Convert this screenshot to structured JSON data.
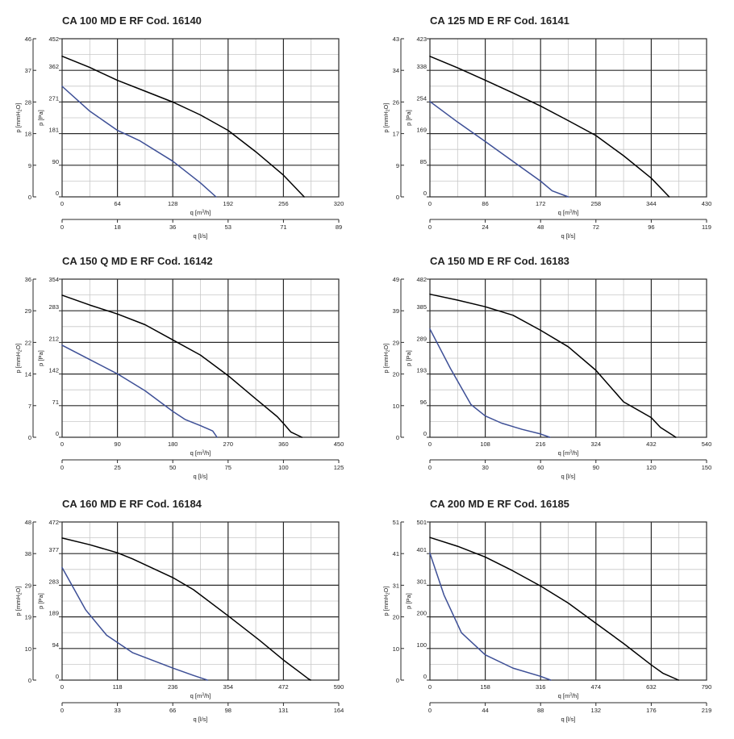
{
  "chart_data": [
    {
      "type": "line",
      "title": "CA 100 MD E RF Cod. 16140",
      "ylabel_pa": "p [Pa]",
      "ylabel_mmh2o": [
        "p [mmH",
        "2",
        "O]"
      ],
      "xlabel_m3h": [
        "q [m",
        "3",
        "/h]"
      ],
      "xlabel_ls": "q [l/s]",
      "ylim": [
        0,
        452
      ],
      "xlim": [
        0,
        320
      ],
      "pa_ticks": [
        "452",
        "362",
        "271",
        "181",
        "90",
        "0"
      ],
      "mm_ticks": [
        "46",
        "37",
        "28",
        "18",
        "9",
        "0"
      ],
      "m3h_ticks": [
        "0",
        "64",
        "128",
        "192",
        "256",
        "320"
      ],
      "ls_ticks": [
        "0",
        "18",
        "36",
        "53",
        "71",
        "89"
      ],
      "series": [
        {
          "color": "#000000",
          "x": [
            0,
            32,
            64,
            96,
            128,
            160,
            192,
            224,
            256,
            280
          ],
          "y": [
            402,
            370,
            333,
            302,
            271,
            234,
            190,
            129,
            62,
            0
          ]
        },
        {
          "color": "#3d4f96",
          "x": [
            0,
            32,
            64,
            90,
            128,
            160,
            178
          ],
          "y": [
            316,
            245,
            190,
            160,
            102,
            40,
            0
          ]
        }
      ]
    },
    {
      "type": "line",
      "title": "CA 125 MD E RF Cod. 16141",
      "ylabel_pa": "p [Pa]",
      "ylabel_mmh2o": [
        "p [mmH",
        "2",
        "O]"
      ],
      "xlabel_m3h": [
        "q [m",
        "3",
        "/h]"
      ],
      "xlabel_ls": "q [l/s]",
      "ylim": [
        0,
        423
      ],
      "xlim": [
        0,
        430
      ],
      "pa_ticks": [
        "423",
        "338",
        "254",
        "169",
        "85",
        "0"
      ],
      "mm_ticks": [
        "43",
        "34",
        "26",
        "17",
        "9",
        "0"
      ],
      "m3h_ticks": [
        "0",
        "86",
        "172",
        "258",
        "344",
        "430"
      ],
      "ls_ticks": [
        "0",
        "24",
        "48",
        "72",
        "96",
        "119"
      ],
      "series": [
        {
          "color": "#000000",
          "x": [
            0,
            43,
            86,
            129,
            172,
            215,
            258,
            301,
            344,
            372
          ],
          "y": [
            376,
            345,
            312,
            278,
            243,
            204,
            164,
            110,
            50,
            0
          ]
        },
        {
          "color": "#3d4f96",
          "x": [
            0,
            43,
            86,
            129,
            172,
            190,
            215
          ],
          "y": [
            255,
            200,
            148,
            95,
            42,
            16,
            0
          ]
        }
      ]
    },
    {
      "type": "line",
      "title": "CA 150 Q MD E RF Cod. 16142",
      "ylabel_pa": "p [Pa]",
      "ylabel_mmh2o": [
        "p [mmH",
        "2",
        "O]"
      ],
      "xlabel_m3h": [
        "q [m",
        "3",
        "/h]"
      ],
      "xlabel_ls": "q [l/s]",
      "ylim": [
        0,
        354
      ],
      "xlim": [
        0,
        450
      ],
      "pa_ticks": [
        "354",
        "283",
        "212",
        "142",
        "71",
        "0"
      ],
      "mm_ticks": [
        "36",
        "29",
        "22",
        "14",
        "7",
        "0"
      ],
      "m3h_ticks": [
        "0",
        "90",
        "180",
        "270",
        "360",
        "450"
      ],
      "ls_ticks": [
        "0",
        "25",
        "50",
        "75",
        "100",
        "125"
      ],
      "series": [
        {
          "color": "#000000",
          "x": [
            0,
            45,
            90,
            135,
            180,
            225,
            270,
            315,
            350,
            362,
            372,
            390
          ],
          "y": [
            318,
            296,
            276,
            252,
            218,
            184,
            138,
            86,
            46,
            28,
            12,
            0
          ]
        },
        {
          "color": "#3d4f96",
          "x": [
            0,
            45,
            90,
            135,
            180,
            200,
            225,
            245,
            252
          ],
          "y": [
            206,
            174,
            142,
            104,
            58,
            40,
            26,
            14,
            0
          ]
        }
      ]
    },
    {
      "type": "line",
      "title": "CA 150 MD E RF Cod. 16183",
      "ylabel_pa": "p [Pa]",
      "ylabel_mmh2o": [
        "p [mmH",
        "2",
        "O]"
      ],
      "xlabel_m3h": [
        "q [m",
        "3",
        "/h]"
      ],
      "xlabel_ls": "q [l/s]",
      "ylim": [
        0,
        482
      ],
      "xlim": [
        0,
        540
      ],
      "pa_ticks": [
        "482",
        "385",
        "289",
        "193",
        "96",
        "0"
      ],
      "mm_ticks": [
        "49",
        "39",
        "29",
        "20",
        "10",
        "0"
      ],
      "m3h_ticks": [
        "0",
        "108",
        "216",
        "324",
        "432",
        "540"
      ],
      "ls_ticks": [
        "0",
        "30",
        "60",
        "90",
        "120",
        "150"
      ],
      "series": [
        {
          "color": "#000000",
          "x": [
            0,
            54,
            108,
            162,
            216,
            270,
            324,
            378,
            432,
            450,
            470,
            480
          ],
          "y": [
            436,
            418,
            398,
            372,
            326,
            276,
            204,
            108,
            60,
            30,
            10,
            0
          ]
        },
        {
          "color": "#3d4f96",
          "x": [
            0,
            40,
            80,
            108,
            140,
            180,
            216,
            234
          ],
          "y": [
            330,
            210,
            100,
            65,
            43,
            24,
            10,
            0
          ]
        }
      ]
    },
    {
      "type": "line",
      "title": "CA 160 MD E RF Cod. 16184",
      "ylabel_pa": "p [Pa]",
      "ylabel_mmh2o": [
        "p [mmH",
        "2",
        "O]"
      ],
      "xlabel_m3h": [
        "q [m",
        "3",
        "/h]"
      ],
      "xlabel_ls": "q [l/s]",
      "ylim": [
        0,
        472
      ],
      "xlim": [
        0,
        590
      ],
      "pa_ticks": [
        "472",
        "377",
        "283",
        "189",
        "94",
        "0"
      ],
      "mm_ticks": [
        "48",
        "38",
        "29",
        "19",
        "10",
        "0"
      ],
      "m3h_ticks": [
        "0",
        "118",
        "236",
        "354",
        "472",
        "590"
      ],
      "ls_ticks": [
        "0",
        "33",
        "66",
        "98",
        "131",
        "164"
      ],
      "series": [
        {
          "color": "#000000",
          "x": [
            0,
            59,
            118,
            150,
            236,
            280,
            354,
            420,
            472,
            510,
            525,
            530
          ],
          "y": [
            424,
            404,
            380,
            362,
            306,
            270,
            192,
            120,
            60,
            20,
            4,
            0
          ]
        },
        {
          "color": "#3d4f96",
          "x": [
            0,
            50,
            95,
            150,
            236,
            280,
            310
          ],
          "y": [
            336,
            210,
            134,
            82,
            36,
            14,
            0
          ]
        }
      ]
    },
    {
      "type": "line",
      "title": "CA 200 MD E RF Cod. 16185",
      "ylabel_pa": "p [Pa]",
      "ylabel_mmh2o": [
        "p [mmH",
        "2",
        "O]"
      ],
      "xlabel_m3h": [
        "q [m",
        "3",
        "/h]"
      ],
      "xlabel_ls": "q [l/s]",
      "ylim": [
        0,
        501
      ],
      "xlim": [
        0,
        790
      ],
      "pa_ticks": [
        "501",
        "401",
        "301",
        "200",
        "100",
        "0"
      ],
      "mm_ticks": [
        "51",
        "41",
        "31",
        "20",
        "10",
        "0"
      ],
      "m3h_ticks": [
        "0",
        "158",
        "316",
        "474",
        "632",
        "790"
      ],
      "ls_ticks": [
        "0",
        "44",
        "88",
        "132",
        "176",
        "219"
      ],
      "series": [
        {
          "color": "#000000",
          "x": [
            0,
            79,
            158,
            237,
            316,
            395,
            474,
            553,
            632,
            665,
            710
          ],
          "y": [
            452,
            424,
            390,
            346,
            298,
            244,
            180,
            116,
            48,
            22,
            0
          ]
        },
        {
          "color": "#3d4f96",
          "x": [
            0,
            40,
            90,
            158,
            237,
            316,
            345
          ],
          "y": [
            402,
            270,
            150,
            80,
            38,
            12,
            0
          ]
        }
      ]
    }
  ]
}
